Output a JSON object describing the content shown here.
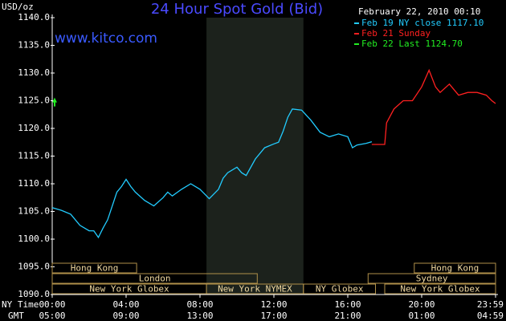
{
  "chart_data": {
    "type": "line",
    "title": "24 Hour Spot Gold (Bid)",
    "site": "www.kitco.com",
    "unit_label": "USD/oz",
    "timestamp": "February 22, 2010 00:10",
    "x_label": "NY Time",
    "x2_label": "GMT",
    "xlim": [
      0,
      24
    ],
    "xticks": [
      {
        "value": 0,
        "label": "00:00"
      },
      {
        "value": 4,
        "label": "04:00"
      },
      {
        "value": 8,
        "label": "08:00"
      },
      {
        "value": 12,
        "label": "12:00"
      },
      {
        "value": 16,
        "label": "16:00"
      },
      {
        "value": 20,
        "label": "20:00"
      },
      {
        "value": 24,
        "label": "23:59"
      }
    ],
    "x2tick_labels": [
      "05:00",
      "09:00",
      "13:00",
      "17:00",
      "21:00",
      "01:00",
      "04:59"
    ],
    "ylim": [
      1090,
      1140
    ],
    "yticks": [
      {
        "value": 1090,
        "label": "1090.0"
      },
      {
        "value": 1095,
        "label": "1095.0"
      },
      {
        "value": 1100,
        "label": "1100.0"
      },
      {
        "value": 1105,
        "label": "1105.0"
      },
      {
        "value": 1110,
        "label": "1110.0"
      },
      {
        "value": 1115,
        "label": "1115.0"
      },
      {
        "value": 1120,
        "label": "1120.0"
      },
      {
        "value": 1125,
        "label": "1125.0"
      },
      {
        "value": 1130,
        "label": "1130.0"
      },
      {
        "value": 1135,
        "label": "1135.0"
      },
      {
        "value": 1140,
        "label": "1140.0"
      }
    ],
    "series": [
      {
        "name": "Feb 19 NY close 1117.10",
        "color": "#22ccff",
        "x": [
          0,
          0.5,
          1,
          1.5,
          2,
          2.25,
          2.5,
          2.75,
          3,
          3.25,
          3.5,
          3.75,
          4,
          4.25,
          4.5,
          5,
          5.5,
          6,
          6.25,
          6.5,
          7,
          7.5,
          8,
          8.5,
          9,
          9.25,
          9.5,
          10,
          10.25,
          10.5,
          11,
          11.5,
          12,
          12.25,
          12.5,
          12.75,
          13,
          13.5,
          14,
          14.5,
          15,
          15.5,
          16,
          16.25,
          16.5,
          17,
          17.3
        ],
        "values": [
          1105.7,
          1105.2,
          1104.5,
          1102.5,
          1101.5,
          1101.5,
          1100.3,
          1102,
          1103.5,
          1106,
          1108.5,
          1109.5,
          1110.8,
          1109.5,
          1108.5,
          1107,
          1106,
          1107.5,
          1108.5,
          1107.8,
          1109,
          1110,
          1109,
          1107.3,
          1109,
          1111,
          1112,
          1113,
          1112,
          1111.5,
          1114.5,
          1116.5,
          1117.2,
          1117.5,
          1119.5,
          1122,
          1123.5,
          1123.3,
          1121.5,
          1119.3,
          1118.5,
          1119,
          1118.5,
          1116.5,
          1117,
          1117.3,
          1117.6
        ]
      },
      {
        "name": "Feb 21 Sunday",
        "color": "#ff2020",
        "x": [
          17.3,
          18,
          18.1,
          18.5,
          19,
          19.5,
          20,
          20.4,
          20.75,
          21,
          21.5,
          22,
          22.5,
          23,
          23.5,
          23.8,
          24
        ],
        "values": [
          1117.1,
          1117.1,
          1121,
          1123.5,
          1125,
          1125,
          1127.5,
          1130.5,
          1127.5,
          1126.5,
          1128,
          1126,
          1126.5,
          1126.5,
          1126,
          1125,
          1124.5
        ]
      },
      {
        "name": "Feb 22 Last 1124.70",
        "color": "#22ee22",
        "x": [
          0
        ],
        "values": [
          1124.7
        ]
      }
    ],
    "sessions": [
      {
        "label": "Hong Kong",
        "start": 0,
        "end": 4.57,
        "row": 0
      },
      {
        "label": "Hong Kong",
        "start": 19.6,
        "end": 24,
        "row": 0
      },
      {
        "label": "London",
        "start": 0,
        "end": 11.1,
        "row": 1
      },
      {
        "label": "Sydney",
        "start": 17.1,
        "end": 24,
        "row": 1
      },
      {
        "label": "New York Globex",
        "start": 0,
        "end": 8.35,
        "row": 2
      },
      {
        "label": "New York NYMEX",
        "start": 8.35,
        "end": 13.6,
        "row": 2,
        "highlight": true
      },
      {
        "label": "NY Globex",
        "start": 13.6,
        "end": 17.5,
        "row": 2
      },
      {
        "label": "New York Globex",
        "start": 18,
        "end": 24,
        "row": 2
      }
    ]
  }
}
